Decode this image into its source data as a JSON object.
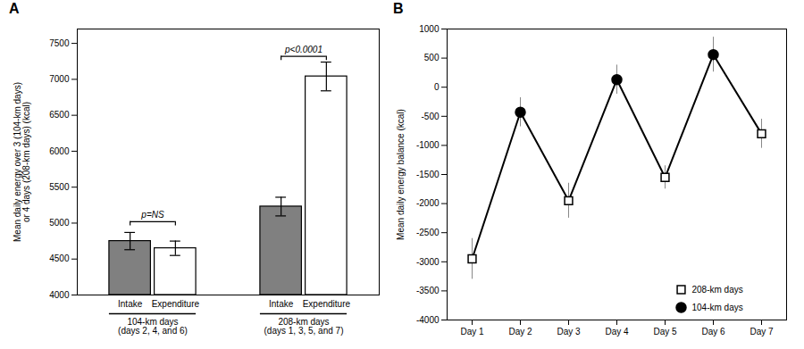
{
  "chart_data": [
    {
      "type": "bar",
      "title": "A",
      "categories": [
        "104-km days\n(days 2, 4, and 6)",
        "208-km days\n(days 1, 3, 5, and 7)"
      ],
      "series": [
        {
          "name": "Intake",
          "color": "#808080",
          "values": [
            4750,
            5230
          ],
          "errors": [
            120,
            130
          ]
        },
        {
          "name": "Expenditure",
          "color": "#ffffff",
          "values": [
            4650,
            7040
          ],
          "errors": [
            100,
            200
          ]
        }
      ],
      "annotations": [
        {
          "text": "p=NS",
          "category": "104-km days\n(days 2, 4, and 6)",
          "y": 5020
        },
        {
          "text": "p<0.0001",
          "category": "208-km days\n(days 1, 3, 5, and 7)",
          "y": 7320
        }
      ],
      "ylabel": "Mean daily energy over 3 (104-km days)\nor 4 days (208-km days) (kcal)",
      "ylim": [
        4000,
        7700
      ],
      "yticks": [
        4000,
        4500,
        5000,
        5500,
        6000,
        6500,
        7000,
        7500
      ]
    },
    {
      "type": "line",
      "title": "B",
      "categories": [
        "Day 1",
        "Day 2",
        "Day 3",
        "Day 4",
        "Day 5",
        "Day 6",
        "Day 7"
      ],
      "values": [
        -2950,
        -430,
        -1950,
        130,
        -1550,
        560,
        -800
      ],
      "color": "#000000",
      "series": [
        {
          "name": "208-km days",
          "type": "scatter",
          "marker": "square",
          "color": "#ffffff",
          "values": [
            -2950,
            null,
            -1950,
            null,
            -1550,
            null,
            -800
          ],
          "errors": [
            350,
            null,
            300,
            null,
            200,
            null,
            250
          ]
        },
        {
          "name": "104-km days",
          "type": "scatter",
          "marker": "circle",
          "color": "#000000",
          "values": [
            null,
            -430,
            null,
            130,
            null,
            560,
            null
          ],
          "errors": [
            null,
            250,
            null,
            250,
            null,
            300,
            null
          ]
        }
      ],
      "ylabel": "Mean daily energy balance (kcal)",
      "ylim": [
        -4000,
        1000
      ],
      "yticks": [
        -4000,
        -3500,
        -3000,
        -2500,
        -2000,
        -1500,
        -1000,
        -500,
        0,
        500,
        1000
      ],
      "legend": "lower right"
    }
  ]
}
